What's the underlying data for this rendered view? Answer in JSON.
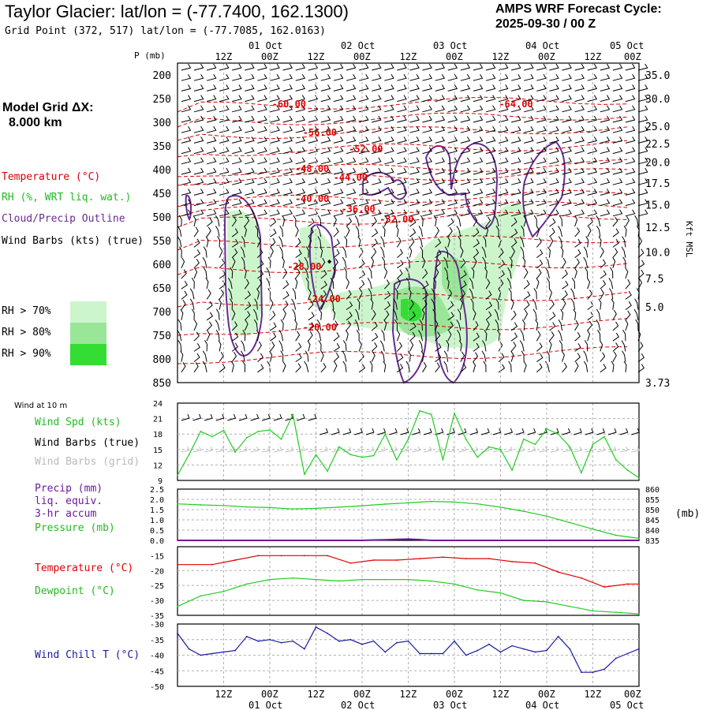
{
  "header": {
    "title": "Taylor Glacier:  lat/lon = (-77.7400, 162.1300)",
    "grid_point": "Grid Point (372, 517) lat/lon = (-77.7085, 162.0163)",
    "cycle_line1": "AMPS WRF Forecast Cycle:",
    "cycle_line2": "2025-09-30 / 00  Z",
    "model_grid_label": "Model Grid ΔX:",
    "model_grid_value": "8.000 km"
  },
  "legend": {
    "temperature": "Temperature (°C)",
    "rh": "RH (%, WRT liq. wat.)",
    "cloud": "Cloud/Precip Outline",
    "wind_barbs": "Wind Barbs (kts) (true)",
    "rh70": "RH > 70%",
    "rh80": "RH > 80%",
    "rh90": "RH > 90%"
  },
  "colors": {
    "temperature": "#dd0000",
    "rh70": "#ccf5cc",
    "rh80": "#99e699",
    "rh90": "#33dd33",
    "cloud": "#662d91",
    "wind_spd": "#22cc22",
    "pressure": "#22cc22",
    "precip": "#6a1b9a",
    "dewpoint": "#22cc22",
    "wind_chill": "#1a1aa0",
    "grid": "#b0b0b0"
  },
  "time_axis": {
    "top_day_labels": [
      "01 Oct",
      "02 Oct",
      "03 Oct",
      "04 Oct",
      "05 Oct"
    ],
    "top_hour_labels": [
      "12Z",
      "00Z",
      "12Z",
      "00Z",
      "12Z",
      "00Z",
      "12Z",
      "00Z",
      "12Z",
      "00Z"
    ],
    "bottom_hour_labels": [
      "12Z",
      "00Z",
      "12Z",
      "00Z",
      "12Z",
      "00Z",
      "12Z",
      "00Z",
      "12Z",
      "00Z"
    ],
    "bottom_day_labels": [
      "01 Oct",
      "02 Oct",
      "03 Oct",
      "04 Oct",
      "05 Oct"
    ],
    "hours_range": [
      0,
      120
    ]
  },
  "chart_data": [
    {
      "type": "heatmap",
      "name": "cross-section",
      "yaxis_label": "P (mb)",
      "right_axis_label": "Kft MSL",
      "pressure_ticks": [
        "200",
        "250",
        "300",
        "350",
        "400",
        "450",
        "500",
        "550",
        "600",
        "650",
        "700",
        "750",
        "800",
        "850"
      ],
      "pressure_range": [
        850,
        200
      ],
      "kft_ticks": [
        {
          "p": 200,
          "label": "35.0"
        },
        {
          "p": 250,
          "label": "30.0"
        },
        {
          "p": 308,
          "label": "25.0"
        },
        {
          "p": 345,
          "label": "22.5"
        },
        {
          "p": 384,
          "label": "20.0"
        },
        {
          "p": 428,
          "label": "17.5"
        },
        {
          "p": 474,
          "label": "15.0"
        },
        {
          "p": 522,
          "label": "12.5"
        },
        {
          "p": 574,
          "label": "10.0"
        },
        {
          "p": 630,
          "label": "7.5"
        },
        {
          "p": 690,
          "label": "5.0"
        },
        {
          "p": 850,
          "label": "3.73"
        }
      ],
      "temperature_labels": [
        {
          "text": "-60.00",
          "hour": 29,
          "p": 268
        },
        {
          "text": "-64.00",
          "hour": 88,
          "p": 268
        },
        {
          "text": "-56.00",
          "hour": 37,
          "p": 328
        },
        {
          "text": "-52.00",
          "hour": 49,
          "p": 363
        },
        {
          "text": "-48.00",
          "hour": 35,
          "p": 405
        },
        {
          "text": "-44.00",
          "hour": 45,
          "p": 423
        },
        {
          "text": "-40.00",
          "hour": 35,
          "p": 468
        },
        {
          "text": "-36.00",
          "hour": 47,
          "p": 490
        },
        {
          "text": "-32.00",
          "hour": 57,
          "p": 512
        },
        {
          "text": "-28.00",
          "hour": 33,
          "p": 612
        },
        {
          "text": "-24.00",
          "hour": 38,
          "p": 680
        },
        {
          "text": "-20.00",
          "hour": 37,
          "p": 740
        }
      ],
      "contour_label": "◆"
    },
    {
      "type": "line",
      "name": "wind-10m",
      "panel_label": "Wind at 10 m",
      "labels": [
        "Wind Spd (kts)",
        "Wind Barbs (true)",
        "Wind Barbs (grid)"
      ],
      "yticks": [
        "24",
        "21",
        "18",
        "15",
        "12",
        "9"
      ],
      "ylim": [
        9,
        24
      ],
      "series": [
        {
          "name": "Wind Spd (kts)",
          "x": [
            0,
            3,
            6,
            9,
            12,
            15,
            18,
            21,
            24,
            27,
            30,
            33,
            36,
            39,
            42,
            45,
            48,
            51,
            54,
            57,
            60,
            63,
            66,
            69,
            72,
            75,
            78,
            81,
            84,
            87,
            90,
            93,
            96,
            99,
            102,
            105,
            108,
            111,
            114,
            117,
            120
          ],
          "values": [
            10,
            14,
            18.5,
            17.5,
            18.7,
            14.5,
            17.3,
            18.5,
            18.8,
            17,
            21.8,
            10.2,
            14,
            10.8,
            15.5,
            14,
            13.5,
            13.8,
            18,
            13,
            17,
            22.5,
            21.8,
            13,
            22,
            17,
            13.5,
            15.5,
            15,
            11,
            17,
            16,
            19,
            18,
            15.5,
            10.5,
            16,
            17.5,
            13,
            11,
            9.5
          ]
        }
      ]
    },
    {
      "type": "line",
      "name": "precip-pressure",
      "labels": [
        "Precip (mm)",
        "liq. equiv.",
        "3-hr accum",
        "Pressure (mb)"
      ],
      "left_ticks": [
        "2.5",
        "2.0",
        "1.5",
        "1.0",
        "0.5",
        "0.0"
      ],
      "right_ticks": [
        "860",
        "855",
        "850",
        "845",
        "840",
        "835"
      ],
      "right_unit": "(mb)",
      "ylim_precip": [
        0,
        2.5
      ],
      "ylim_pressure": [
        835,
        860
      ],
      "series": [
        {
          "name": "Pressure (mb)",
          "x": [
            0,
            6,
            12,
            18,
            24,
            30,
            36,
            42,
            48,
            54,
            60,
            66,
            72,
            78,
            84,
            90,
            96,
            102,
            108,
            114,
            120
          ],
          "values": [
            852.8,
            852.3,
            852,
            851.3,
            851,
            850.3,
            850.6,
            851.2,
            851.9,
            852.7,
            853.3,
            854,
            853.7,
            852.8,
            851.2,
            849.2,
            846.8,
            843.7,
            840.5,
            837.5,
            836
          ]
        },
        {
          "name": "Precip (mm)",
          "x": [
            0,
            48,
            51,
            54,
            57,
            60,
            63,
            66,
            120
          ],
          "values": [
            0,
            0,
            0.02,
            0.03,
            0.05,
            0.06,
            0.04,
            0,
            0
          ]
        }
      ]
    },
    {
      "type": "line",
      "name": "temp-dewpoint",
      "labels": [
        "Temperature (°C)",
        "Dewpoint (°C)"
      ],
      "yticks": [
        "-15",
        "-20",
        "-25",
        "-30",
        "-35"
      ],
      "ylim": [
        -35,
        -12
      ],
      "series": [
        {
          "name": "Temperature (°C)",
          "x": [
            0,
            9,
            15,
            21,
            27,
            33,
            39,
            45,
            51,
            57,
            63,
            69,
            75,
            81,
            87,
            93,
            99,
            105,
            111,
            117,
            120
          ],
          "values": [
            -18,
            -18,
            -16.5,
            -15,
            -15,
            -15,
            -15,
            -17.5,
            -16.5,
            -16.5,
            -16,
            -15.5,
            -16,
            -16,
            -17,
            -17.5,
            -20.5,
            -22.5,
            -25.5,
            -24.5,
            -24.5
          ]
        },
        {
          "name": "Dewpoint (°C)",
          "x": [
            0,
            6,
            12,
            18,
            24,
            30,
            36,
            42,
            48,
            54,
            60,
            66,
            72,
            78,
            84,
            90,
            96,
            102,
            108,
            114,
            120
          ],
          "values": [
            -32,
            -28.5,
            -27,
            -24.5,
            -23,
            -22.5,
            -23,
            -23.5,
            -23,
            -23,
            -23,
            -23.5,
            -24.5,
            -26.5,
            -27.5,
            -30,
            -30.5,
            -32,
            -33.5,
            -34,
            -34.5
          ]
        }
      ]
    },
    {
      "type": "line",
      "name": "wind-chill",
      "labels": [
        "Wind Chill T (°C)"
      ],
      "yticks": [
        "-30",
        "-35",
        "-40",
        "-45",
        "-50"
      ],
      "ylim": [
        -50,
        -30
      ],
      "series": [
        {
          "name": "Wind Chill T (°C)",
          "x": [
            0,
            3,
            6,
            9,
            12,
            15,
            18,
            21,
            24,
            27,
            30,
            33,
            36,
            39,
            42,
            45,
            48,
            51,
            54,
            57,
            60,
            63,
            66,
            69,
            72,
            75,
            78,
            81,
            84,
            87,
            90,
            93,
            96,
            99,
            102,
            105,
            108,
            111,
            114,
            117,
            120
          ],
          "values": [
            -33,
            -38,
            -40,
            -39.5,
            -39,
            -38.5,
            -34,
            -35.5,
            -35,
            -36,
            -35.5,
            -38,
            -31,
            -33,
            -35.5,
            -35,
            -36.5,
            -35.5,
            -39,
            -36,
            -35.5,
            -39.5,
            -39.5,
            -39.5,
            -35.5,
            -40,
            -38.5,
            -36.5,
            -39,
            -37,
            -38,
            -39,
            -38.5,
            -34,
            -38,
            -45.5,
            -45.5,
            -44.5,
            -41,
            -39.5,
            -38
          ]
        }
      ]
    }
  ]
}
